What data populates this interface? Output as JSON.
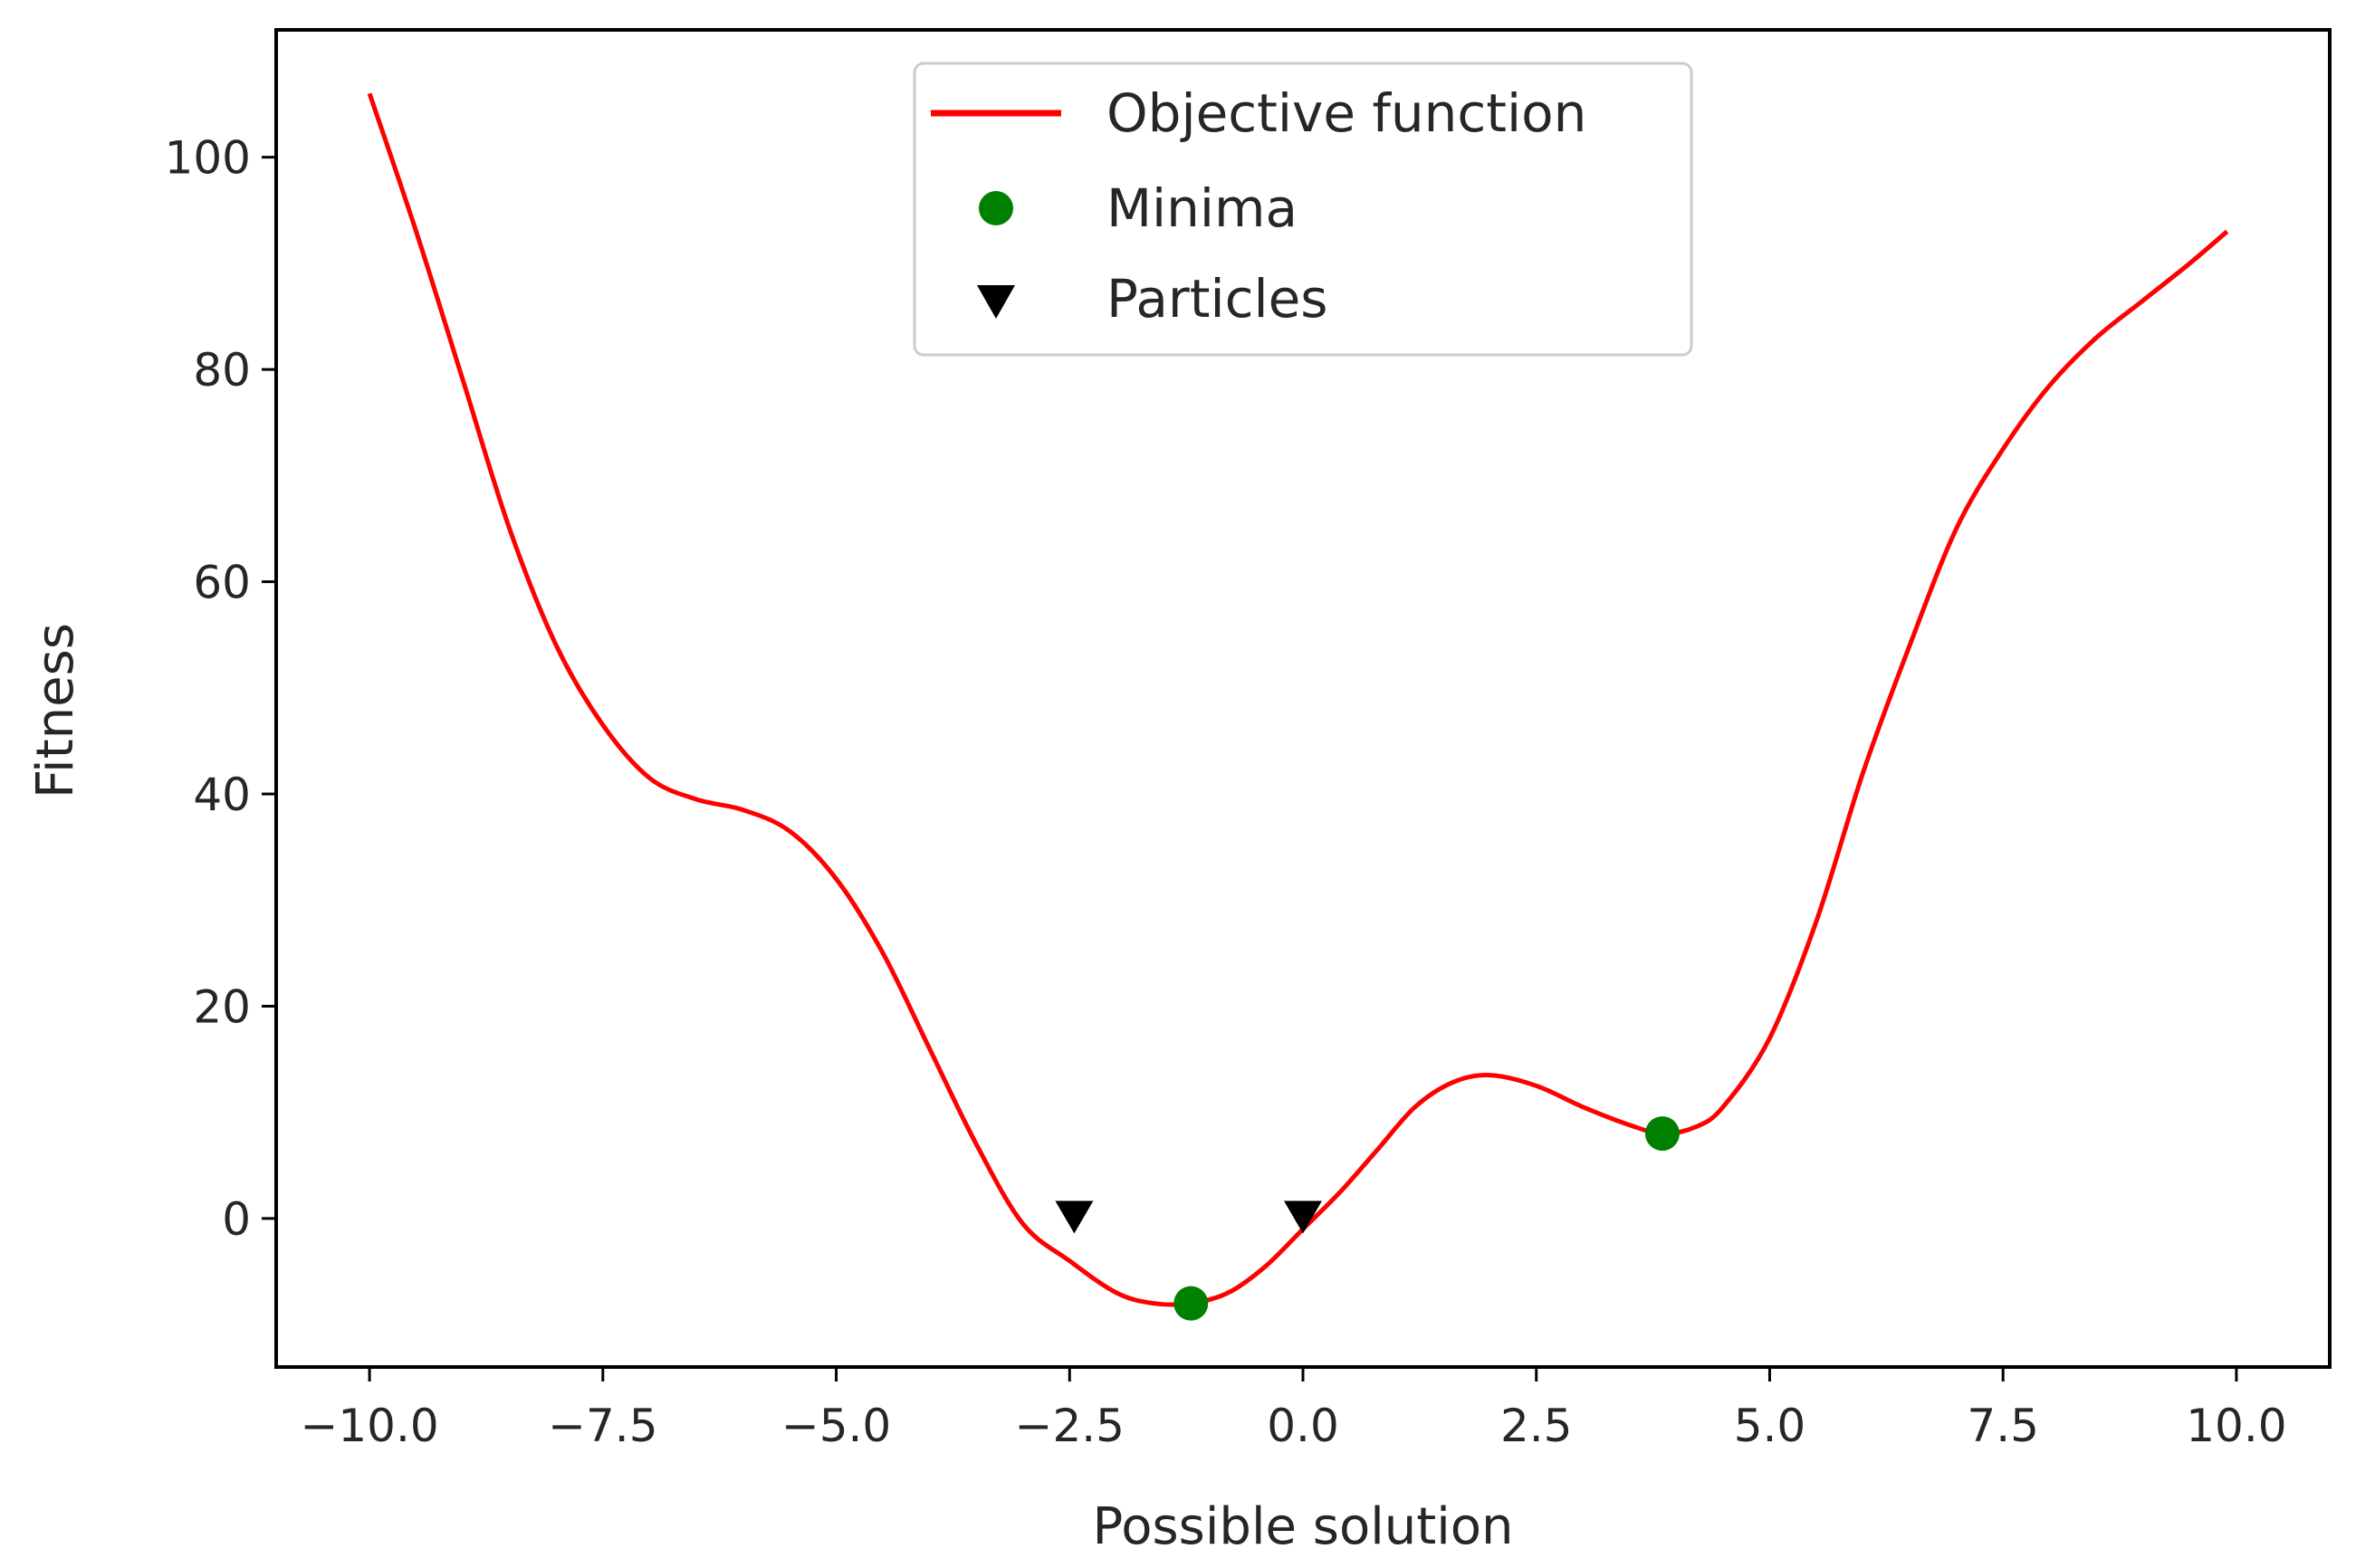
{
  "chart_data": {
    "type": "line",
    "xlabel": "Possible solution",
    "ylabel": "Fitness",
    "xlim": [
      -11.0,
      11.0
    ],
    "ylim": [
      -14,
      112
    ],
    "xticks": [
      -10.0,
      -7.5,
      -5.0,
      -2.5,
      0.0,
      2.5,
      5.0,
      7.5,
      10.0
    ],
    "xtick_labels": [
      "−10.0",
      "−7.5",
      "−5.0",
      "−2.5",
      "0.0",
      "2.5",
      "5.0",
      "7.5",
      "10.0"
    ],
    "yticks": [
      0,
      20,
      40,
      60,
      80,
      100
    ],
    "ytick_labels": [
      "0",
      "20",
      "40",
      "60",
      "80",
      "100"
    ],
    "grid": false,
    "legend_position": "top-center",
    "series": [
      {
        "name": "Objective function",
        "kind": "line",
        "color": "#ff0000",
        "x": [
          -10.0,
          -9.5,
          -9.0,
          -8.5,
          -8.0,
          -7.5,
          -7.0,
          -6.5,
          -6.0,
          -5.5,
          -5.0,
          -4.5,
          -4.0,
          -3.5,
          -3.0,
          -2.5,
          -2.0,
          -1.6,
          -1.2,
          -0.8,
          -0.4,
          0.0,
          0.4,
          0.8,
          1.2,
          1.6,
          2.0,
          2.5,
          3.0,
          3.5,
          3.85,
          4.2,
          4.5,
          5.0,
          5.5,
          6.0,
          6.5,
          7.0,
          7.5,
          8.0,
          8.5,
          9.0,
          9.5,
          9.9
        ],
        "y": [
          106,
          93,
          79,
          65,
          54,
          46.5,
          41.5,
          39.5,
          38.5,
          36.5,
          32,
          25,
          16,
          7,
          -0.5,
          -4,
          -7,
          -8,
          -8,
          -7,
          -4.5,
          -1,
          2.5,
          6.5,
          10.5,
          12.8,
          13.5,
          12.5,
          10.5,
          8.8,
          8,
          8.6,
          10.5,
          17,
          28,
          42,
          54,
          65,
          72.5,
          78.5,
          83,
          86.5,
          90,
          93
        ]
      },
      {
        "name": "Minima",
        "kind": "points",
        "marker": "circle",
        "color": "#008000",
        "x": [
          -1.2,
          3.85
        ],
        "y": [
          -8,
          8
        ]
      },
      {
        "name": "Particles",
        "kind": "points",
        "marker": "triangle-down",
        "color": "#000000",
        "x": [
          -2.45,
          0.0
        ],
        "y": [
          0.2,
          0.2
        ]
      }
    ]
  }
}
